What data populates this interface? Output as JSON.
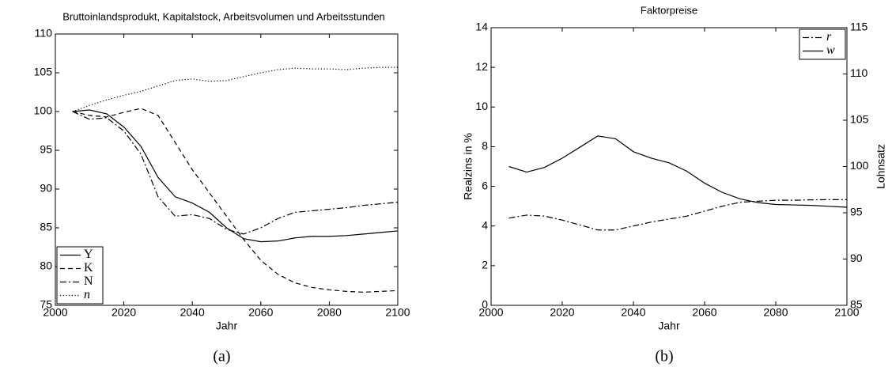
{
  "chart_data": [
    {
      "type": "line",
      "title": "Bruttoinlandsprodukt, Kapitalstock, Arbeitsvolumen und Arbeitsstunden",
      "xlabel": "Jahr",
      "caption": "(a)",
      "x": [
        2005,
        2010,
        2015,
        2020,
        2025,
        2030,
        2035,
        2040,
        2045,
        2050,
        2055,
        2060,
        2065,
        2070,
        2075,
        2080,
        2085,
        2090,
        2095,
        2100
      ],
      "series": [
        {
          "name": "Y",
          "color": "#000000",
          "dash": "solid",
          "values": [
            100,
            100.2,
            99.7,
            98,
            95.5,
            91.5,
            89,
            88.2,
            87,
            85,
            83.6,
            83.2,
            83.3,
            83.7,
            83.9,
            83.9,
            84,
            84.2,
            84.4,
            84.6
          ]
        },
        {
          "name": "K",
          "color": "#000000",
          "dash": "dashed",
          "values": [
            100,
            99.5,
            99.3,
            99.9,
            100.4,
            99.5,
            96,
            92.5,
            89.5,
            86.5,
            83.5,
            80.8,
            79,
            77.9,
            77.3,
            77,
            76.8,
            76.7,
            76.8,
            76.9
          ]
        },
        {
          "name": "N",
          "color": "#000000",
          "dash": "dashdot",
          "values": [
            100,
            99,
            99.2,
            97.5,
            94.5,
            89,
            86.5,
            86.7,
            86.2,
            84.8,
            84.2,
            85,
            86.2,
            87,
            87.2,
            87.4,
            87.6,
            87.9,
            88.1,
            88.3
          ]
        },
        {
          "name": "n",
          "color": "#000000",
          "dash": "dotted",
          "values": [
            100,
            100.8,
            101.5,
            102.1,
            102.6,
            103.3,
            104,
            104.2,
            103.9,
            104,
            104.5,
            105,
            105.4,
            105.6,
            105.5,
            105.5,
            105.4,
            105.6,
            105.7,
            105.7
          ]
        }
      ],
      "xlim": [
        2000,
        2100
      ],
      "xticks": [
        2000,
        2020,
        2040,
        2060,
        2080,
        2100
      ],
      "ylim": [
        75,
        110
      ],
      "yticks": [
        75,
        80,
        85,
        90,
        95,
        100,
        105,
        110
      ],
      "legend": "lower-left"
    },
    {
      "type": "line",
      "title": "Faktorpreise",
      "xlabel": "Jahr",
      "ylabel": "Realzins in %",
      "y2label": "Lohnsatz",
      "caption": "(b)",
      "x": [
        2005,
        2010,
        2015,
        2020,
        2025,
        2030,
        2035,
        2040,
        2045,
        2050,
        2055,
        2060,
        2065,
        2070,
        2075,
        2080,
        2085,
        2090,
        2095,
        2100
      ],
      "series": [
        {
          "name": "r",
          "color": "#000000",
          "dash": "dashdot",
          "values": [
            4.4,
            4.55,
            4.5,
            4.3,
            4.05,
            3.8,
            3.8,
            4,
            4.2,
            4.35,
            4.5,
            4.75,
            5,
            5.2,
            5.25,
            5.3,
            5.3,
            5.32,
            5.33,
            5.33
          ]
        },
        {
          "name": "w",
          "color": "#000000",
          "dash": "solid",
          "axis": "y2",
          "values": [
            100,
            99.4,
            99.9,
            100.9,
            102.1,
            103.3,
            103,
            101.6,
            100.9,
            100.4,
            99.5,
            98.2,
            97.2,
            96.5,
            96.1,
            95.9,
            95.85,
            95.8,
            95.7,
            95.6
          ]
        }
      ],
      "xlim": [
        2000,
        2100
      ],
      "xticks": [
        2000,
        2020,
        2040,
        2060,
        2080,
        2100
      ],
      "ylim": [
        0,
        14
      ],
      "yticks": [
        0,
        2,
        4,
        6,
        8,
        10,
        12,
        14
      ],
      "y2lim": [
        85,
        115
      ],
      "y2ticks": [
        85,
        90,
        95,
        100,
        105,
        110,
        115
      ],
      "legend": "upper-right"
    }
  ]
}
